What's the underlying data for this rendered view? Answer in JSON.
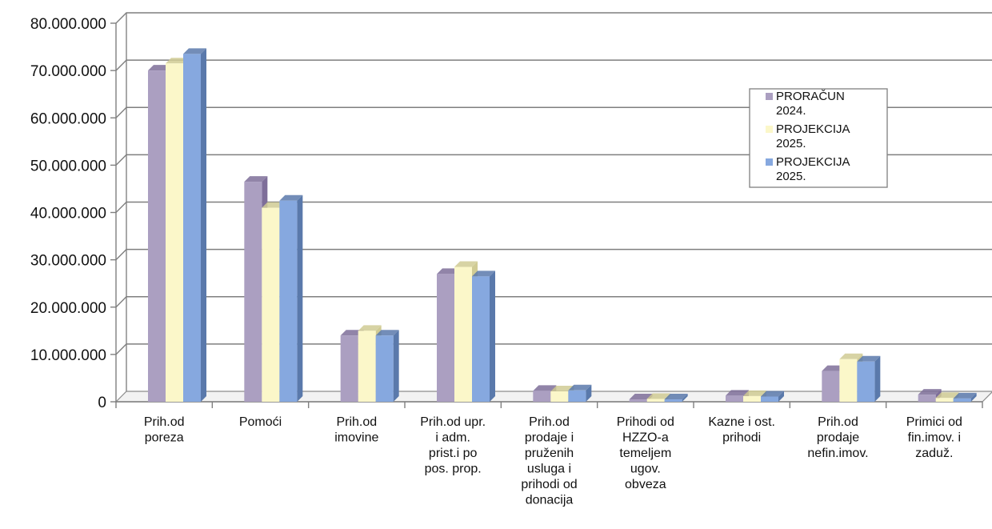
{
  "chart_data": {
    "type": "bar",
    "title": "",
    "xlabel": "",
    "ylabel": "",
    "ylim": [
      0,
      80000000
    ],
    "y_ticks": [
      0,
      10000000,
      20000000,
      30000000,
      40000000,
      50000000,
      60000000,
      70000000,
      80000000
    ],
    "y_tick_labels": [
      "0",
      "10.000.000",
      "20.000.000",
      "30.000.000",
      "40.000.000",
      "50.000.000",
      "60.000.000",
      "70.000.000",
      "80.000.000"
    ],
    "grid": true,
    "legend_position": "top-right",
    "style": "3d-clustered-column",
    "categories": [
      "Prih.od poreza",
      "Pomoći",
      "Prih.od imovine",
      "Prih.od upr. i adm. prist.i po pos. prop.",
      "Prih.od prodaje i pruženih usluga i prihodi od donacija",
      "Prihodi od HZZO-a temeljem ugov. obveza",
      "Kazne i ost. prihodi",
      "Prih.od prodaje nefin.imov.",
      "Primici od fin.imov. i zaduž."
    ],
    "category_label_lines": [
      [
        "Prih.od",
        "poreza"
      ],
      [
        "Pomoći"
      ],
      [
        "Prih.od",
        "imovine"
      ],
      [
        "Prih.od upr.",
        "i adm.",
        "prist.i po",
        "pos. prop."
      ],
      [
        "Prih.od",
        "prodaje i",
        "pruženih",
        "usluga i",
        "prihodi od",
        "donacija"
      ],
      [
        "Prihodi od",
        "HZZO-a",
        "temeljem",
        "ugov.",
        "obveza"
      ],
      [
        "Kazne i ost.",
        "prihodi"
      ],
      [
        "Prih.od",
        "prodaje",
        "nefin.imov."
      ],
      [
        "Primici od",
        "fin.imov. i",
        "zaduž."
      ]
    ],
    "series": [
      {
        "name": "PRORAČUN 2024.",
        "legend_lines": [
          "PRORAČUN",
          "2024."
        ],
        "color": "#ab9fc1",
        "side_color": "#7e6e99",
        "values": [
          70000000,
          46500000,
          14000000,
          27000000,
          2300000,
          500000,
          1300000,
          6500000,
          1500000
        ]
      },
      {
        "name": "PROJEKCIJA 2025.",
        "legend_lines": [
          "PROJEKCIJA",
          "2025."
        ],
        "color": "#fbf7c9",
        "side_color": "#d0cb94",
        "values": [
          71500000,
          41000000,
          15000000,
          28500000,
          2200000,
          600000,
          1200000,
          9000000,
          800000
        ]
      },
      {
        "name": "PROJEKCIJA 2025.",
        "legend_lines": [
          "PROJEKCIJA",
          "2025."
        ],
        "color": "#86a8df",
        "side_color": "#5a79ab",
        "values": [
          73500000,
          42500000,
          14000000,
          26500000,
          2400000,
          500000,
          1100000,
          8500000,
          700000
        ]
      }
    ]
  }
}
